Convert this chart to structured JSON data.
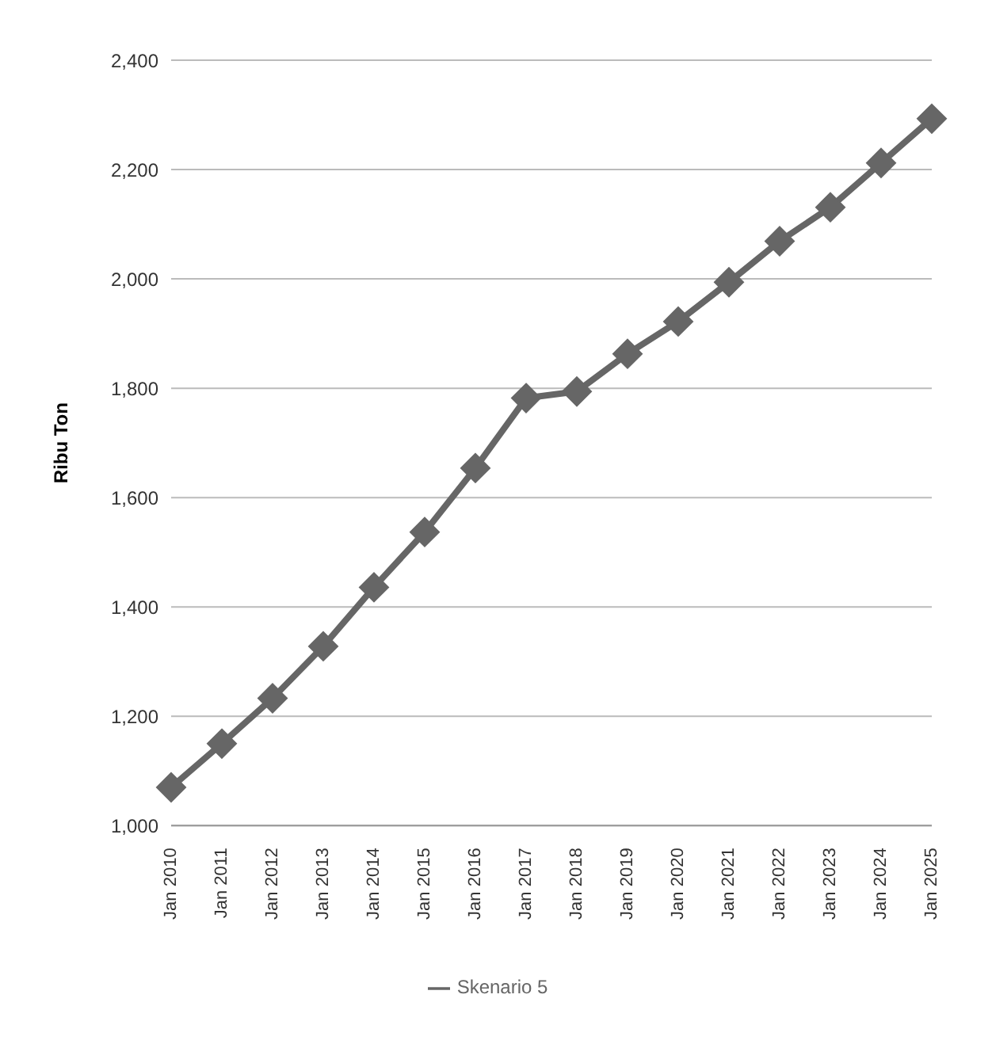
{
  "chart_data": {
    "type": "line",
    "ylabel": "Ribu Ton",
    "categories": [
      "Jan 2010",
      "Jan 2011",
      "Jan 2012",
      "Jan 2013",
      "Jan 2014",
      "Jan 2015",
      "Jan 2016",
      "Jan 2017",
      "Jan 2018",
      "Jan 2019",
      "Jan 2020",
      "Jan 2021",
      "Jan 2022",
      "Jan 2023",
      "Jan 2024",
      "Jan 2025"
    ],
    "series": [
      {
        "name": "Skenario 5",
        "color": "#666666",
        "values": [
          1070,
          1150,
          1233,
          1328,
          1436,
          1537,
          1654,
          1782,
          1794,
          1863,
          1922,
          1994,
          2069,
          2131,
          2212,
          2293
        ]
      }
    ],
    "ylim": [
      1000,
      2400
    ],
    "yticks": [
      {
        "value": 1000,
        "label": "1,000"
      },
      {
        "value": 1200,
        "label": "1,200"
      },
      {
        "value": 1400,
        "label": "1,400"
      },
      {
        "value": 1600,
        "label": "1,600"
      },
      {
        "value": 1800,
        "label": "1,800"
      },
      {
        "value": 2000,
        "label": "2,000"
      },
      {
        "value": 2200,
        "label": "2,200"
      },
      {
        "value": 2400,
        "label": "2,400"
      }
    ],
    "grid": "y",
    "legend": "bottom",
    "marker": "diamond",
    "line_style": "solid"
  }
}
